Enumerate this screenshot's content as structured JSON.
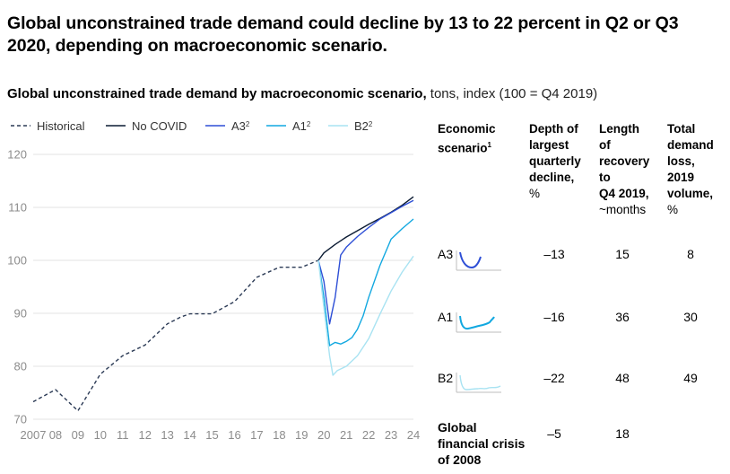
{
  "title": "Global unconstrained trade demand could decline by 13 to 22 percent in Q2 or Q3 2020, depending on macroeconomic scenario.",
  "subtitle_bold": "Global unconstrained trade demand by macroeconomic scenario,",
  "subtitle_rest": " tons, index (100 = Q4 2019)",
  "colors": {
    "historical": "#2b3a55",
    "no_covid": "#0b1b33",
    "a3": "#2e4fd6",
    "a1": "#12a8e0",
    "b2": "#a9e3f2",
    "axis_text": "#8c8c8c",
    "grid": "#e3e3e3"
  },
  "legend": [
    {
      "key": "historical",
      "label": "Historical",
      "sup": "",
      "dash": true
    },
    {
      "key": "no_covid",
      "label": "No COVID",
      "sup": "",
      "dash": false
    },
    {
      "key": "a3",
      "label": "A3",
      "sup": "2",
      "dash": false
    },
    {
      "key": "a1",
      "label": "A1",
      "sup": "2",
      "dash": false
    },
    {
      "key": "b2",
      "label": "B2",
      "sup": "2",
      "dash": false
    }
  ],
  "chart_data": {
    "type": "line",
    "ylim": [
      70,
      120
    ],
    "yticks": [
      70,
      80,
      90,
      100,
      110,
      120
    ],
    "xlim": [
      2007,
      2024
    ],
    "xtick_labels": [
      "2007",
      "08",
      "09",
      "10",
      "11",
      "12",
      "13",
      "14",
      "15",
      "16",
      "17",
      "18",
      "19",
      "20",
      "21",
      "22",
      "23",
      "24"
    ],
    "grid": true,
    "series": [
      {
        "name": "Historical",
        "key": "historical",
        "dash": true,
        "points": [
          [
            2007,
            73.3
          ],
          [
            2008,
            75.6
          ],
          [
            2009,
            71.6
          ],
          [
            2010,
            78.5
          ],
          [
            2011,
            82
          ],
          [
            2012,
            84
          ],
          [
            2013,
            88
          ],
          [
            2013.6,
            89.3
          ],
          [
            2014,
            89.9
          ],
          [
            2015,
            89.9
          ],
          [
            2016,
            92.2
          ],
          [
            2017,
            96.8
          ],
          [
            2018,
            98.7
          ],
          [
            2019,
            98.7
          ],
          [
            2019.75,
            100
          ]
        ]
      },
      {
        "name": "No COVID",
        "key": "no_covid",
        "dash": false,
        "points": [
          [
            2019.75,
            100
          ],
          [
            2020,
            101.4
          ],
          [
            2020.5,
            103
          ],
          [
            2021,
            104.4
          ],
          [
            2021.5,
            105.6
          ],
          [
            2022,
            106.8
          ],
          [
            2022.5,
            107.9
          ],
          [
            2023,
            109.1
          ],
          [
            2023.5,
            110.4
          ],
          [
            2024,
            112
          ]
        ]
      },
      {
        "name": "A3",
        "key": "a3",
        "dash": false,
        "points": [
          [
            2019.75,
            100
          ],
          [
            2020,
            96
          ],
          [
            2020.25,
            88
          ],
          [
            2020.5,
            93
          ],
          [
            2020.75,
            101
          ],
          [
            2021,
            102.5
          ],
          [
            2021.5,
            104.5
          ],
          [
            2022,
            106.2
          ],
          [
            2022.5,
            107.8
          ],
          [
            2023,
            109
          ],
          [
            2023.5,
            110.2
          ],
          [
            2024,
            111.3
          ]
        ]
      },
      {
        "name": "A1",
        "key": "a1",
        "dash": false,
        "points": [
          [
            2019.75,
            100
          ],
          [
            2020,
            93
          ],
          [
            2020.25,
            83.9
          ],
          [
            2020.5,
            84.5
          ],
          [
            2020.75,
            84.2
          ],
          [
            2021,
            84.7
          ],
          [
            2021.25,
            85.4
          ],
          [
            2021.5,
            87
          ],
          [
            2021.75,
            89.5
          ],
          [
            2022,
            93
          ],
          [
            2022.5,
            99
          ],
          [
            2023,
            104
          ],
          [
            2023.5,
            106
          ],
          [
            2024,
            107.8
          ]
        ]
      },
      {
        "name": "B2",
        "key": "b2",
        "dash": false,
        "points": [
          [
            2019.75,
            100
          ],
          [
            2020,
            91
          ],
          [
            2020.25,
            82
          ],
          [
            2020.4,
            78.3
          ],
          [
            2020.6,
            79.2
          ],
          [
            2021,
            80
          ],
          [
            2021.5,
            82
          ],
          [
            2022,
            85.2
          ],
          [
            2022.5,
            89.8
          ],
          [
            2023,
            94.2
          ],
          [
            2023.5,
            97.8
          ],
          [
            2024,
            100.8
          ]
        ]
      }
    ]
  },
  "table": {
    "headers": [
      {
        "lines": [
          "Economic",
          "scenario"
        ],
        "sup": "1",
        "unit": []
      },
      {
        "lines": [
          "Depth of",
          "largest",
          "quarterly",
          "decline,"
        ],
        "sup": "",
        "unit": [
          "%"
        ]
      },
      {
        "lines": [
          "Length",
          "of",
          "recovery",
          "to",
          "Q4 2019,"
        ],
        "sup": "",
        "unit": [
          "~months"
        ]
      },
      {
        "lines": [
          "Total",
          "demand",
          "loss,",
          "2019",
          "volume,"
        ],
        "sup": "",
        "unit": [
          "%"
        ]
      }
    ],
    "rows": [
      {
        "label": "A3",
        "key": "a3",
        "depth": "–13",
        "length": "15",
        "loss": "8"
      },
      {
        "label": "A1",
        "key": "a1",
        "depth": "–16",
        "length": "36",
        "loss": "30"
      },
      {
        "label": "B2",
        "key": "b2",
        "depth": "–22",
        "length": "48",
        "loss": "49"
      }
    ],
    "gfc": {
      "label_lines": [
        "Global",
        "financial crisis",
        "of 2008"
      ],
      "depth": "–5",
      "length": "18",
      "loss": ""
    }
  }
}
